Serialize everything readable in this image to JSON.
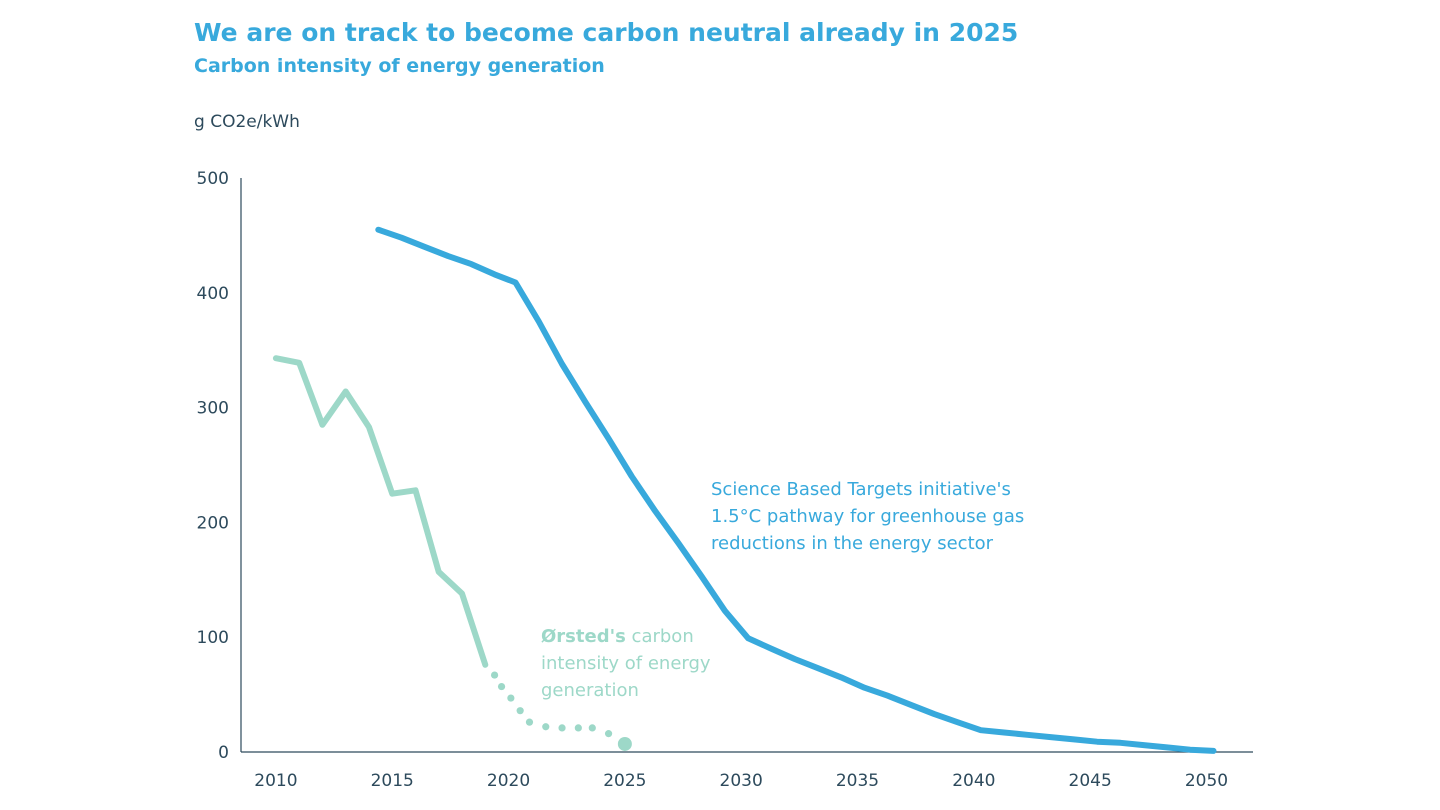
{
  "header": {
    "title": "We are on track to become carbon neutral already in 2025",
    "subtitle": "Carbon intensity of energy generation"
  },
  "colors": {
    "accent": "#38a9dc",
    "orsted": "#9dd8c8",
    "axis": "#2d4a5c"
  },
  "chart_data": {
    "type": "line",
    "ylabel": "g CO2e/kWh",
    "xlabel": "",
    "xlim": [
      2008.5,
      2052
    ],
    "ylim": [
      0,
      500
    ],
    "x_ticks": [
      "2010",
      "2015",
      "2020",
      "2025",
      "2030",
      "2035",
      "2040",
      "2045",
      "2050"
    ],
    "y_ticks": [
      "0",
      "100",
      "200",
      "300",
      "400",
      "500"
    ],
    "grid": false,
    "legend": "none",
    "series": [
      {
        "style": "solid",
        "color": "#38a9dc",
        "x": [
          2014.4,
          2015.4,
          2016.4,
          2017.4,
          2018.4,
          2019.4,
          2020.3,
          2021.3,
          2022.3,
          2023.3,
          2024.3,
          2025.3,
          2026.3,
          2027.3,
          2028.3,
          2029.3,
          2030.3,
          2031.3,
          2032.3,
          2033.3,
          2034.3,
          2035.3,
          2036.3,
          2037.3,
          2038.3,
          2039.3,
          2040.3,
          2041.3,
          2042.3,
          2043.3,
          2044.3,
          2045.3,
          2046.3,
          2047.3,
          2048.3,
          2049.3,
          2050.3
        ],
        "values": [
          455,
          448,
          440,
          432,
          425,
          416,
          409,
          375,
          338,
          305,
          273,
          240,
          210,
          182,
          153,
          123,
          99,
          90,
          81,
          73,
          65,
          56,
          49,
          41,
          33,
          26,
          19,
          17,
          15,
          13,
          11,
          9,
          8,
          6,
          4,
          2,
          1
        ]
      },
      {
        "style": "solid",
        "color": "#9dd8c8",
        "x": [
          2010,
          2011,
          2012,
          2013,
          2014,
          2015,
          2016,
          2017,
          2018,
          2019
        ],
        "values": [
          343,
          339,
          285,
          314,
          283,
          225,
          228,
          157,
          138,
          76
        ]
      },
      {
        "style": "dotted",
        "color": "#9dd8c8",
        "x": [
          2019.4,
          2019.7,
          2020.1,
          2020.5,
          2020.9,
          2021.6,
          2022.3,
          2023.0,
          2023.6,
          2024.3,
          2025.0
        ],
        "values": [
          67,
          57,
          47,
          36,
          26,
          22,
          21,
          21,
          21,
          16,
          7
        ],
        "end_marker": true
      }
    ],
    "annotations": [
      {
        "line1": "Science Based Targets initiative's",
        "line2": "1.5°C pathway for greenhouse gas",
        "line3": "reductions in the energy sector"
      },
      {
        "bold": "Ørsted's",
        "line1_rest": " carbon",
        "line2": "intensity of energy",
        "line3": "generation"
      }
    ]
  }
}
